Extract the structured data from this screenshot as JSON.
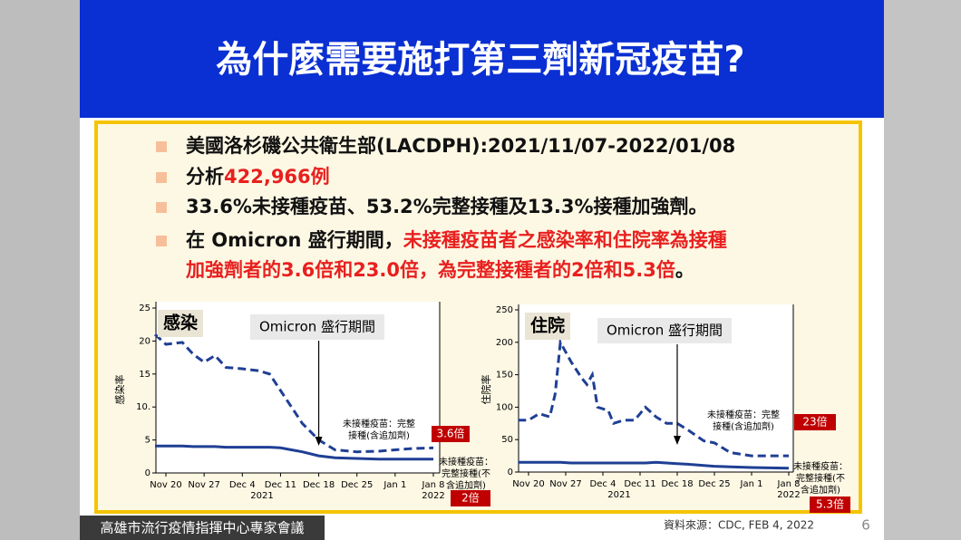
{
  "title": "為什麼需要施打第三劑新冠疫苗?",
  "highlight_color": "#e8201f",
  "bullets": [
    [
      [
        {
          "text": "美國洛杉磯公共衛生部(LACDPH):2021/11/07-2022/01/08"
        }
      ]
    ],
    [
      [
        {
          "text": "分析"
        },
        {
          "text": "422,966例",
          "highlight": true
        }
      ]
    ],
    [
      [
        {
          "text": "33.6%未接種疫苗、53.2%完整接種及13.3%接種加強劑。"
        }
      ]
    ],
    [
      [
        {
          "text": "在 Omicron 盛行期間，"
        },
        {
          "text": "未接種疫苗者之感染率和住院率為接種",
          "highlight": true
        }
      ],
      [
        {
          "text": "加強劑者的3.6倍和23.0倍，為完整接種者的2倍和5.3倍",
          "highlight": true
        },
        {
          "text": "。"
        }
      ]
    ]
  ],
  "chart_data": [
    {
      "type": "line",
      "panel_label": "感染",
      "annotation": "Omicron 盛行期間",
      "ylabel": "感染率",
      "x": [
        "Nov 18",
        "Nov 20",
        "Nov 23",
        "Nov 25",
        "Nov 27",
        "Nov 29",
        "Dec 1",
        "Dec 4",
        "Dec 7",
        "Dec 9",
        "Dec 11",
        "Dec 13",
        "Dec 15",
        "Dec 18",
        "Dec 21",
        "Dec 25",
        "Dec 29",
        "Jan 1",
        "Jan 4",
        "Jan 8"
      ],
      "xticks": [
        "Nov 20",
        "Nov 27",
        "Dec 4",
        "Dec 11",
        "Dec 18",
        "Dec 25",
        "Jan 1",
        "Jan 8"
      ],
      "x_year_labels": [
        "2021",
        "2022"
      ],
      "ylim": [
        0,
        25
      ],
      "yticks": [
        0,
        5,
        {
          "value": 10,
          "label": "10."
        },
        15,
        20,
        25
      ],
      "series": [
        {
          "color": "#1f3f94",
          "style": "dashed",
          "values": [
            21,
            19.5,
            19.8,
            18,
            16.8,
            17.8,
            16,
            15.8,
            15.5,
            15,
            12.5,
            10,
            7.5,
            5,
            3.5,
            3.2,
            3.3,
            3.5,
            3.7,
            3.8
          ]
        },
        {
          "color": "#1f3f94",
          "style": "solid",
          "values": [
            4.1,
            4.1,
            4.1,
            4.0,
            4.0,
            4.0,
            3.9,
            3.9,
            3.9,
            3.9,
            3.8,
            3.5,
            3.2,
            2.6,
            2.3,
            2.2,
            2.1,
            2.1,
            2.1,
            2.1
          ]
        }
      ],
      "notes": [
        {
          "lines": [
            "未接種疫苗：完整",
            "接種(含追加劑)"
          ],
          "ratio": "3.6倍"
        },
        {
          "lines": [
            "未接種疫苗：",
            "完整接種(不",
            "含追加劑)"
          ],
          "ratio": "2倍"
        }
      ]
    },
    {
      "type": "line",
      "panel_label": "住院",
      "annotation": "Omicron 盛行期間",
      "ylabel": "住院率",
      "x": [
        "Nov 18",
        "Nov 20",
        "Nov 22",
        "Nov 24",
        "Nov 25",
        "Nov 26",
        "Nov 28",
        "Nov 30",
        "Dec 1",
        "Dec 2",
        "Dec 3",
        "Dec 5",
        "Dec 6",
        "Dec 8",
        "Dec 10",
        "Dec 12",
        "Dec 14",
        "Dec 16",
        "Dec 18",
        "Dec 20",
        "Dec 23",
        "Dec 25",
        "Dec 28",
        "Jan 1",
        "Jan 8"
      ],
      "xticks": [
        "Nov 20",
        "Nov 27",
        "Dec 4",
        "Dec 11",
        "Dec 18",
        "Dec 25",
        "Jan 1",
        "Jan 8"
      ],
      "x_year_labels": [
        "2021",
        "2022"
      ],
      "ylim": [
        0,
        250
      ],
      "yticks": [
        0,
        50,
        100,
        150,
        200,
        250
      ],
      "series": [
        {
          "color": "#1f3f94",
          "style": "dashed",
          "values": [
            80,
            80,
            90,
            85,
            120,
            200,
            170,
            145,
            135,
            150,
            100,
            95,
            75,
            80,
            80,
            100,
            85,
            75,
            75,
            65,
            48,
            45,
            30,
            25,
            25
          ]
        },
        {
          "color": "#1f3f94",
          "style": "solid",
          "values": [
            15,
            15,
            15,
            15,
            15,
            15,
            14,
            14,
            14,
            14,
            14,
            14,
            14,
            14,
            14,
            14,
            15,
            14,
            13,
            12,
            10,
            9,
            8,
            7,
            6
          ]
        }
      ],
      "notes": [
        {
          "lines": [
            "未接種疫苗：完整",
            "接種(含追加劑)"
          ],
          "ratio": "23倍"
        },
        {
          "lines": [
            "未接種疫苗：",
            "完整接種(不",
            "含追加劑)"
          ],
          "ratio": "5.3倍"
        }
      ]
    }
  ],
  "footer": {
    "meeting": "高雄市流行疫情指揮中心專家會議",
    "source": "資料來源：CDC, FEB 4, 2022",
    "page": "6"
  }
}
